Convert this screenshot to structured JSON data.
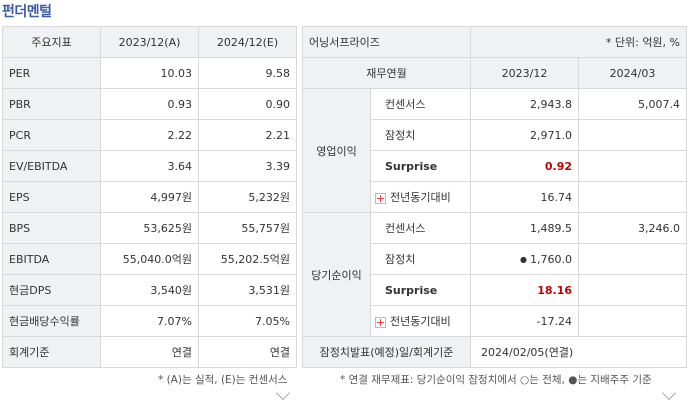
{
  "section_title": "펀더멘털",
  "left_table": {
    "headers": [
      "주요지표",
      "2023/12(A)",
      "2024/12(E)"
    ],
    "rows": [
      {
        "label": "PER",
        "v1": "10.03",
        "v2": "9.58"
      },
      {
        "label": "PBR",
        "v1": "0.93",
        "v2": "0.90"
      },
      {
        "label": "PCR",
        "v1": "2.22",
        "v2": "2.21"
      },
      {
        "label": "EV/EBITDA",
        "v1": "3.64",
        "v2": "3.39"
      },
      {
        "label": "EPS",
        "v1": "4,997원",
        "v2": "5,232원"
      },
      {
        "label": "BPS",
        "v1": "53,625원",
        "v2": "55,757원"
      },
      {
        "label": "EBITDA",
        "v1": "55,040.0억원",
        "v2": "55,202.5억원"
      },
      {
        "label": "현금DPS",
        "v1": "3,540원",
        "v2": "3,531원"
      },
      {
        "label": "현금배당수익률",
        "v1": "7.07%",
        "v2": "7.05%"
      },
      {
        "label": "회계기준",
        "v1": "연결",
        "v2": "연결"
      }
    ],
    "footnote": "* (A)는 실적, (E)는 컨센서스"
  },
  "right_table": {
    "company": "어닝서프라이즈",
    "unit": "* 단위: 억원, %",
    "headers": [
      "재무연월",
      "2023/12",
      "2024/03"
    ],
    "groups": [
      {
        "name": "영업이익",
        "rows": [
          {
            "label": "컨센서스",
            "v1": "2,943.8",
            "v2": "5,007.4"
          },
          {
            "label": "잠정치",
            "v1": "2,971.0",
            "v2": ""
          },
          {
            "label": "Surprise",
            "v1": "0.92",
            "v2": ""
          },
          {
            "label": "전년동기대비",
            "v1": "16.74",
            "v2": ""
          }
        ]
      },
      {
        "name": "당기순이익",
        "rows": [
          {
            "label": "컨센서스",
            "v1": "1,489.5",
            "v2": "3,246.0"
          },
          {
            "label": "잠정치",
            "v1": "1,760.0",
            "v2": ""
          },
          {
            "label": "Surprise",
            "v1": "18.16",
            "v2": ""
          },
          {
            "label": "전년동기대비",
            "v1": "-17.24",
            "v2": ""
          }
        ]
      }
    ],
    "last_row": {
      "label": "잠정치발표(예정)일/회계기준",
      "value": "2024/02/05(연결)"
    },
    "footnote": "* 연결 재무제표: 당기순이익 잠정치에서 ○는 전체, ●는 지배주주 기준"
  },
  "colors": {
    "title": "#3d5ca8",
    "header_bg": "#f0f1f3",
    "surprise_value": "#c00000",
    "border": "#d9d9d9"
  },
  "icons": [
    "plus-icon",
    "filled-dot-icon",
    "chevron-down-icon"
  ]
}
